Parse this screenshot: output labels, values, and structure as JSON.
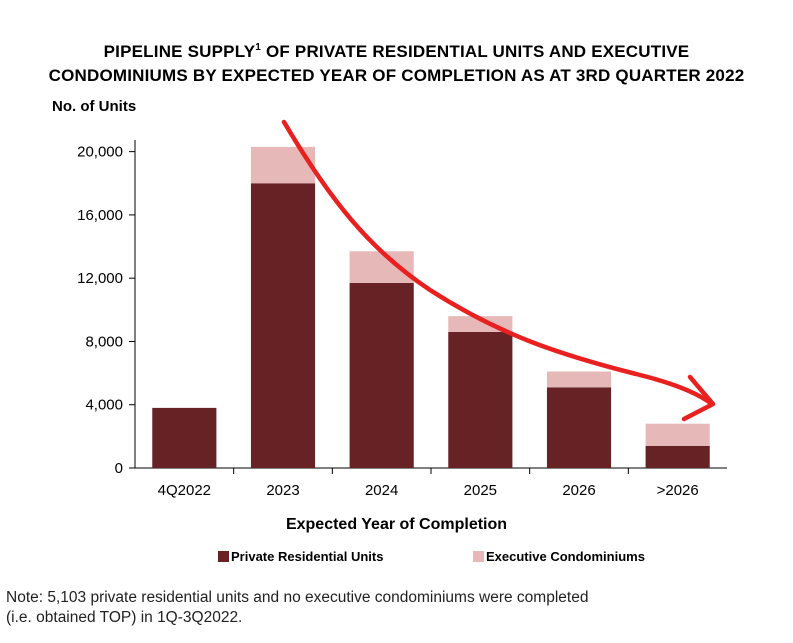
{
  "title_line1": "PIPELINE SUPPLY",
  "title_sup": "1",
  "title_rest": " OF PRIVATE RESIDENTIAL UNITS AND EXECUTIVE",
  "title_line2": "CONDOMINIUMS BY EXPECTED YEAR OF COMPLETION AS AT 3RD QUARTER 2022",
  "note_line1": "Note: 5,103 private residential units and no executive condominiums were completed",
  "note_line2": "(i.e. obtained TOP) in 1Q-3Q2022.",
  "colors": {
    "private": "#662225",
    "ec": "#e6b8b8",
    "arrow": "#e8201f"
  },
  "chart_data": {
    "type": "bar",
    "stacked": true,
    "categories": [
      "4Q2022",
      "2023",
      "2024",
      "2025",
      "2026",
      ">2026"
    ],
    "series": [
      {
        "name": "Private Residential Units",
        "values": [
          3800,
          18000,
          11700,
          8600,
          5100,
          1400
        ]
      },
      {
        "name": "Executive Condominiums",
        "values": [
          0,
          2300,
          2000,
          1000,
          1000,
          1400
        ]
      }
    ],
    "xlabel": "Expected Year of Completion",
    "ylabel": "No. of Units",
    "ylim": [
      0,
      22000
    ],
    "yticks": [
      0,
      4000,
      8000,
      12000,
      16000,
      20000
    ],
    "ytick_labels": [
      "0",
      "4,000",
      "8,000",
      "12,000",
      "16,000",
      "20,000"
    ],
    "legend_position": "bottom",
    "annotation": "red hand-drawn downward arrow over the bars"
  }
}
